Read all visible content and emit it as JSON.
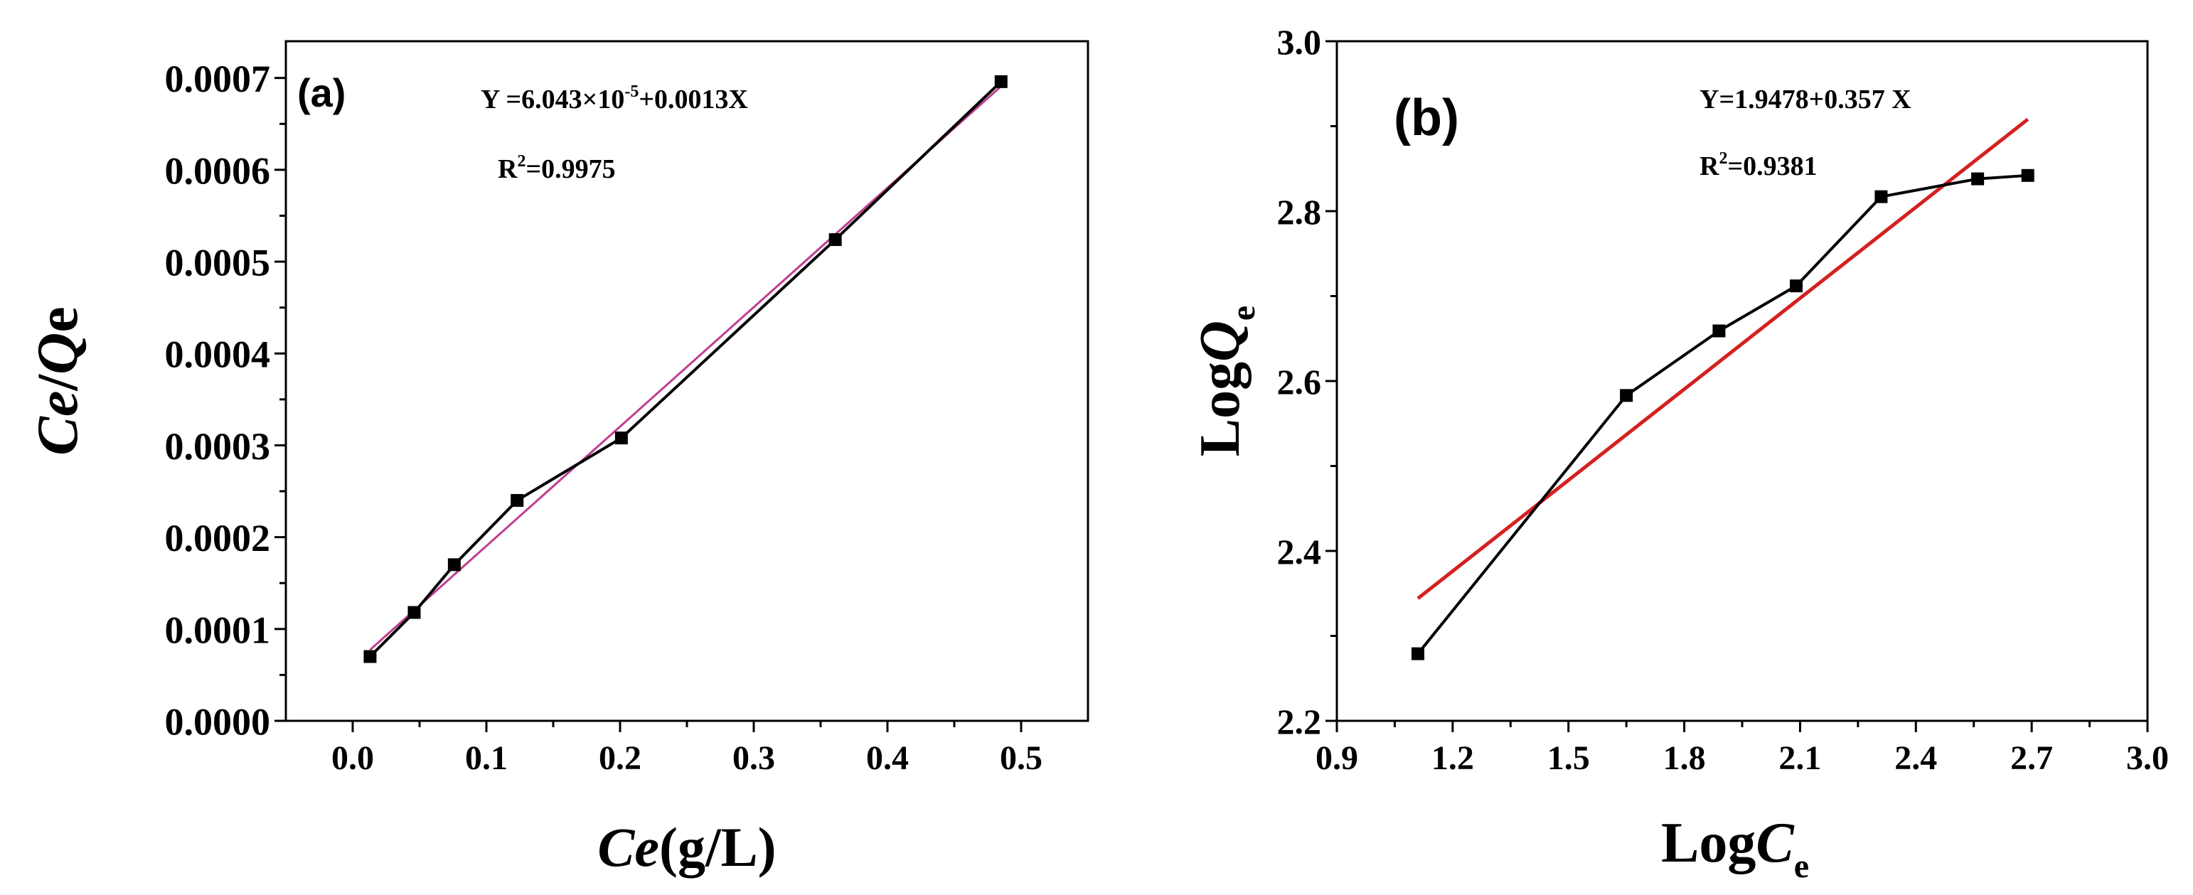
{
  "chart_data": [
    {
      "type": "scatter",
      "panel_label": "(a)",
      "title": "",
      "xlabel": {
        "main": "Ce",
        "unit": "(g/L)"
      },
      "ylabel": {
        "main_a": "Ce",
        "sep": "/",
        "main_b": "Q",
        "suffix": "e"
      },
      "xlim": [
        -0.05,
        0.55
      ],
      "ylim": [
        0.0,
        0.00074
      ],
      "xticks": [
        0.0,
        0.1,
        0.2,
        0.3,
        0.4,
        0.5
      ],
      "xtick_labels": [
        "0.0",
        "0.1",
        "0.2",
        "0.3",
        "0.4",
        "0.5"
      ],
      "yticks": [
        0.0,
        0.0001,
        0.0002,
        0.0003,
        0.0004,
        0.0005,
        0.0006,
        0.0007
      ],
      "ytick_labels": [
        "0.0000",
        "0.0001",
        "0.0002",
        "0.0003",
        "0.0004",
        "0.0005",
        "0.0006",
        "0.0007"
      ],
      "series": [
        {
          "name": "data",
          "color": "#000000",
          "marker": "square",
          "x": [
            0.013,
            0.046,
            0.076,
            0.123,
            0.201,
            0.361,
            0.485
          ],
          "y": [
            7e-05,
            0.000118,
            0.00017,
            0.00024,
            0.000308,
            0.000524,
            0.000696
          ]
        }
      ],
      "fit": {
        "color": "#c03e8e",
        "intercept": 6.043e-05,
        "slope": 0.0013,
        "x_range": [
          0.013,
          0.485
        ]
      },
      "equation": {
        "prefix": "Y =6.043×10",
        "exp": "-5",
        "suffix": "+0.0013X"
      },
      "r2": {
        "prefix": "R",
        "exp": "2",
        "suffix": "=0.9975"
      }
    },
    {
      "type": "scatter",
      "panel_label": "(b)",
      "title": "",
      "xlabel": {
        "main": "Log",
        "var": "C",
        "sub": "e"
      },
      "ylabel": {
        "main": "Log",
        "var": "Q",
        "sub": "e"
      },
      "xlim": [
        0.9,
        3.0
      ],
      "ylim": [
        2.2,
        3.0
      ],
      "xticks": [
        0.9,
        1.2,
        1.5,
        1.8,
        2.1,
        2.4,
        2.7,
        3.0
      ],
      "xtick_labels": [
        "0.9",
        "1.2",
        "1.5",
        "1.8",
        "2.1",
        "2.4",
        "2.7",
        "3.0"
      ],
      "yticks": [
        2.2,
        2.4,
        2.6,
        2.8,
        3.0
      ],
      "ytick_labels": [
        "2.2",
        "2.4",
        "2.6",
        "2.8",
        "3.0"
      ],
      "series": [
        {
          "name": "data",
          "color": "#000000",
          "marker": "square",
          "x": [
            1.11,
            1.65,
            1.89,
            2.09,
            2.31,
            2.56,
            2.69
          ],
          "y": [
            2.279,
            2.583,
            2.659,
            2.712,
            2.817,
            2.838,
            2.842
          ]
        }
      ],
      "fit": {
        "color": "#d42020",
        "intercept": 1.9478,
        "slope": 0.357,
        "x_range": [
          1.11,
          2.69
        ]
      },
      "equation": {
        "text": "Y=1.9478+0.357 X"
      },
      "r2": {
        "prefix": "R",
        "exp": "2",
        "suffix": "=0.9381"
      }
    }
  ]
}
